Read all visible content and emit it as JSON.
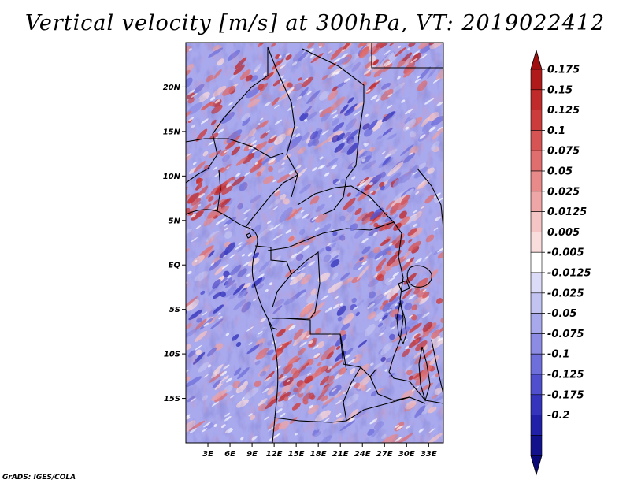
{
  "title": "Vertical velocity [m/s] at 300hPa, VT: 2019022412",
  "footer": "GrADS: IGES/COLA",
  "map": {
    "variable": "Vertical velocity",
    "units": "m/s",
    "level": "300hPa",
    "valid_time": "2019022412",
    "lon_range": [
      0,
      35
    ],
    "lat_range": [
      -20,
      25
    ],
    "lat_ticks": [
      {
        "value": 20,
        "label": "20N"
      },
      {
        "value": 15,
        "label": "15N"
      },
      {
        "value": 10,
        "label": "10N"
      },
      {
        "value": 5,
        "label": "5N"
      },
      {
        "value": 0,
        "label": "EQ"
      },
      {
        "value": -5,
        "label": "5S"
      },
      {
        "value": -10,
        "label": "10S"
      },
      {
        "value": -15,
        "label": "15S"
      }
    ],
    "lon_ticks": [
      {
        "value": 3,
        "label": "3E"
      },
      {
        "value": 6,
        "label": "6E"
      },
      {
        "value": 9,
        "label": "9E"
      },
      {
        "value": 12,
        "label": "12E"
      },
      {
        "value": 15,
        "label": "15E"
      },
      {
        "value": 18,
        "label": "18E"
      },
      {
        "value": 21,
        "label": "21E"
      },
      {
        "value": 24,
        "label": "24E"
      },
      {
        "value": 27,
        "label": "27E"
      },
      {
        "value": 30,
        "label": "30E"
      },
      {
        "value": 33,
        "label": "33E"
      }
    ]
  },
  "colorbar": {
    "labels": [
      "0.175",
      "0.15",
      "0.125",
      "0.1",
      "0.075",
      "0.05",
      "0.025",
      "0.0125",
      "0.005",
      "-0.005",
      "-0.0125",
      "-0.025",
      "-0.05",
      "-0.075",
      "-0.1",
      "-0.125",
      "-0.175",
      "-0.2"
    ],
    "colors": [
      "#b01a1a",
      "#c02a2a",
      "#cc3c3c",
      "#d75454",
      "#e06e6e",
      "#e88a8a",
      "#efa6a6",
      "#f5c4c4",
      "#f9dcdc",
      "#ffffff",
      "#dcdcf8",
      "#c3c3f2",
      "#a8a8ec",
      "#8c8ce4",
      "#6f6fdb",
      "#5050cf",
      "#3434bd",
      "#2020a8",
      "#12128c"
    ],
    "top_color": "#a01010",
    "bottom_color": "#0a0a78"
  }
}
